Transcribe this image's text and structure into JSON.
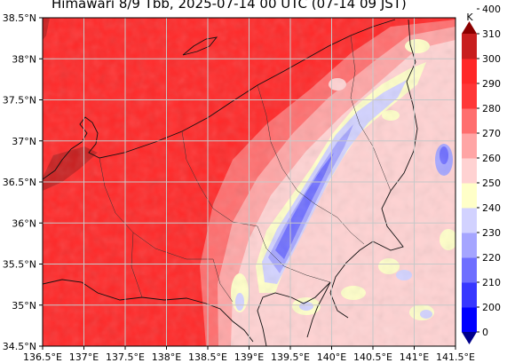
{
  "title": "Himawari 8/9 Tbb, 2025-07-14 00 UTC (07-14 09 JST)",
  "x_axis": {
    "ticks": [
      "136.5°E",
      "137°E",
      "137.5°E",
      "138°E",
      "138.5°E",
      "139°E",
      "139.5°E",
      "140°E",
      "140.5°E",
      "141°E",
      "141.5°E"
    ]
  },
  "y_axis": {
    "ticks": [
      "38.5°N",
      "38°N",
      "37.5°N",
      "37°N",
      "36.5°N",
      "36°N",
      "35.5°N",
      "35°N",
      "34.5°N"
    ]
  },
  "colorbar": {
    "unit": "K",
    "levels": [
      "0",
      "200",
      "210",
      "220",
      "230",
      "240",
      "250",
      "260",
      "270",
      "280",
      "290",
      "300",
      "310",
      "400"
    ],
    "colors": [
      "#00008b",
      "#0000ff",
      "#3737ff",
      "#6e6eff",
      "#a5a5ff",
      "#d2d2ff",
      "#ffffc8",
      "#ffd2d2",
      "#ffa5a5",
      "#ff6e6e",
      "#ff3737",
      "#ff2828",
      "#c81e1e",
      "#8b0000"
    ]
  }
}
